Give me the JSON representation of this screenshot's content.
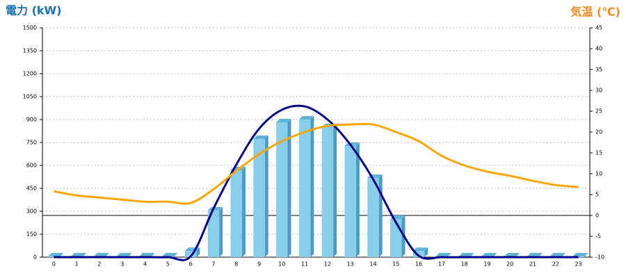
{
  "chart_data": {
    "type": "combo",
    "ylabel": "電力 (kW)",
    "y2label": "気温 (℃)",
    "categories": [
      "0",
      "1",
      "2",
      "3",
      "4",
      "5",
      "6",
      "7",
      "8",
      "9",
      "10",
      "11",
      "12",
      "13",
      "14",
      "15",
      "16",
      "17",
      "18",
      "19",
      "20",
      "21",
      "22",
      "23"
    ],
    "series": [
      {
        "type": "bar",
        "color": "#87ceeb",
        "values": [
          5,
          5,
          5,
          5,
          5,
          5,
          40,
          305,
          568,
          773,
          882,
          900,
          850,
          727,
          518,
          250,
          40,
          5,
          5,
          5,
          5,
          5,
          5,
          5
        ]
      },
      {
        "type": "line",
        "color": "#00008b",
        "values": [
          0,
          0,
          0,
          0,
          0,
          0,
          5,
          318,
          605,
          840,
          964,
          986,
          900,
          736,
          509,
          227,
          9,
          0,
          0,
          0,
          0,
          0,
          0,
          0
        ]
      },
      {
        "type": "line",
        "color": "#ffa500",
        "axis": "y2",
        "values": [
          5.8,
          4.8,
          4.3,
          3.8,
          3.3,
          3.3,
          3.0,
          6.3,
          10.7,
          14.7,
          17.8,
          20,
          21.5,
          21.8,
          21.8,
          20,
          17.8,
          14.3,
          12,
          10.5,
          9.5,
          8.3,
          7.3,
          6.8
        ]
      }
    ],
    "ylim": [
      0,
      1500
    ],
    "yticks": [
      0,
      150,
      300,
      450,
      600,
      750,
      900,
      1050,
      1200,
      1350,
      1500
    ],
    "y2lim": [
      -10,
      45
    ],
    "y2ticks": [
      -10,
      -5,
      0,
      5,
      10,
      15,
      20,
      25,
      30,
      35,
      40,
      45
    ],
    "grid": true
  }
}
